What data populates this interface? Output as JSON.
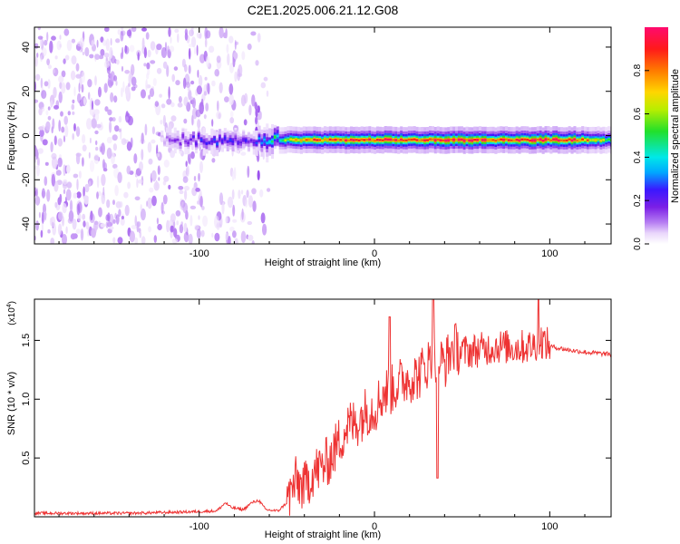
{
  "title": "C2E1.2025.006.21.12.G08",
  "colors": {
    "snr_line": "#ee3333",
    "colormap": [
      "#ffffff",
      "#e9d6fb",
      "#b57cf2",
      "#7b1fe6",
      "#3a18ff",
      "#00a8ff",
      "#00e8e8",
      "#22e02a",
      "#b8ee00",
      "#ffd600",
      "#ff7a00",
      "#ff1a1a",
      "#ff0a6e"
    ]
  },
  "chart_data": [
    {
      "type": "heatmap",
      "title": "",
      "xlabel": "Height of straight line (km)",
      "ylabel": "Frequency (Hz)",
      "xlim": [
        -194,
        135
      ],
      "ylim": [
        -49,
        49
      ],
      "x_ticks": [
        -100,
        0,
        100
      ],
      "y_ticks": [
        -40,
        -20,
        0,
        20,
        40
      ],
      "x_tick_labels": [
        "-100",
        "0",
        "100"
      ],
      "y_tick_labels": [
        "-40",
        "-20",
        "0",
        "20",
        "40"
      ],
      "grid": false,
      "colorbar": {
        "label": "Normalized spectral amplitude",
        "range": [
          0,
          1
        ],
        "ticks": [
          0.0,
          0.2,
          0.4,
          0.6,
          0.8
        ],
        "tick_labels": [
          "0.0",
          "0.2",
          "0.4",
          "0.6",
          "0.8"
        ]
      },
      "ridge": {
        "frequency_hz": -2,
        "description_points": [
          {
            "x": -120,
            "amp": 0.2
          },
          {
            "x": -95,
            "amp": 0.35
          },
          {
            "x": -72,
            "amp": 0.3
          },
          {
            "x": -60,
            "amp": 0.5
          },
          {
            "x": -40,
            "amp": 0.85
          },
          {
            "x": -20,
            "amp": 0.9
          },
          {
            "x": 0,
            "amp": 0.9
          },
          {
            "x": 40,
            "amp": 0.95
          },
          {
            "x": 80,
            "amp": 0.95
          },
          {
            "x": 110,
            "amp": 1.0
          },
          {
            "x": 135,
            "amp": 0.6
          }
        ]
      }
    },
    {
      "type": "line",
      "title": "",
      "xlabel": "Height of straight line (km)",
      "ylabel": "SNR (10 * v/v)",
      "y_multiplier": "(x10",
      "y_multiplier_exp": "4",
      "y_multiplier_close": ")",
      "xlim": [
        -194,
        135
      ],
      "ylim": [
        0,
        1.85
      ],
      "x_ticks": [
        -100,
        0,
        100
      ],
      "y_ticks": [
        0.5,
        1.0,
        1.5
      ],
      "x_tick_labels": [
        "-100",
        "0",
        "100"
      ],
      "y_tick_labels": [
        "0.5",
        "1.0",
        "1.5"
      ],
      "grid": false,
      "series": [
        {
          "x": [
            -194,
            -170,
            -140,
            -110,
            -90,
            -85,
            -82,
            -75,
            -70,
            -66,
            -62,
            -55,
            -50,
            -45,
            -40,
            -35,
            -30,
            -25,
            -20,
            -15,
            -10,
            -5,
            0,
            5,
            10,
            15,
            20,
            25,
            30,
            35,
            40,
            45,
            50,
            60,
            70,
            80,
            90,
            95,
            100,
            110,
            120,
            135
          ],
          "y": [
            0.03,
            0.03,
            0.03,
            0.04,
            0.05,
            0.12,
            0.08,
            0.06,
            0.12,
            0.14,
            0.06,
            0.05,
            0.12,
            0.3,
            0.25,
            0.38,
            0.42,
            0.5,
            0.65,
            0.78,
            0.8,
            0.9,
            0.92,
            1.05,
            1.08,
            1.15,
            1.18,
            1.2,
            1.3,
            1.35,
            1.3,
            1.45,
            1.4,
            1.42,
            1.45,
            1.44,
            1.45,
            1.5,
            1.45,
            1.42,
            1.4,
            1.38
          ]
        }
      ]
    }
  ]
}
